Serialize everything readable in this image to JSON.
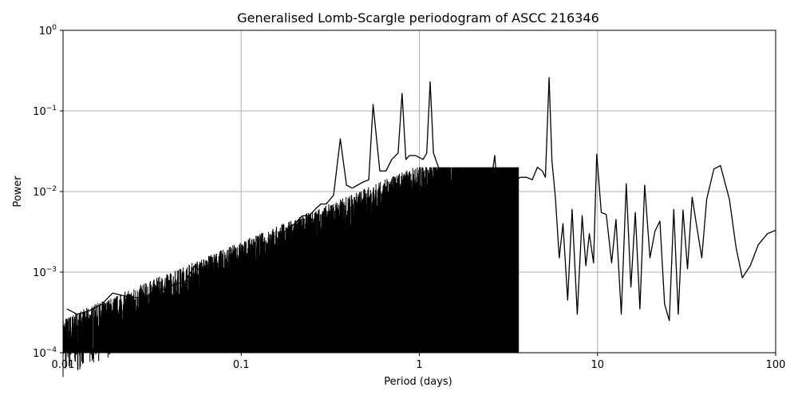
{
  "chart_data": {
    "type": "line",
    "title": "Generalised Lomb-Scargle periodogram of ASCC 216346",
    "xlabel": "Period (days)",
    "ylabel": "Power",
    "xscale": "log",
    "yscale": "log",
    "xlim": [
      0.01,
      100
    ],
    "ylim": [
      0.0001,
      1
    ],
    "grid": true,
    "line_color": "#000000",
    "grid_color": "#b0b0b0",
    "x_ticks": [
      {
        "value": 0.01,
        "label": "0.01"
      },
      {
        "value": 0.1,
        "label": "0.1"
      },
      {
        "value": 1,
        "label": "1"
      },
      {
        "value": 10,
        "label": "10"
      },
      {
        "value": 100,
        "label": "100"
      }
    ],
    "y_ticks": [
      {
        "value": 0.0001,
        "base": "10",
        "exp": "−4"
      },
      {
        "value": 0.001,
        "base": "10",
        "exp": "−3"
      },
      {
        "value": 0.01,
        "base": "10",
        "exp": "−2"
      },
      {
        "value": 0.1,
        "base": "10",
        "exp": "−1"
      },
      {
        "value": 1,
        "base": "10",
        "exp": "0"
      }
    ],
    "series": [
      {
        "x": [
          0.0105,
          0.012,
          0.014,
          0.0165,
          0.019,
          0.0225,
          0.0265,
          0.031,
          0.036,
          0.042,
          0.048,
          0.055,
          0.062,
          0.071,
          0.08,
          0.09,
          0.1,
          0.112,
          0.125,
          0.14,
          0.155,
          0.17,
          0.185,
          0.2,
          0.22,
          0.24,
          0.26,
          0.28,
          0.3,
          0.33,
          0.36,
          0.39,
          0.42,
          0.45,
          0.48,
          0.52,
          0.55,
          0.6,
          0.65,
          0.7,
          0.76,
          0.8,
          0.84,
          0.88,
          0.95,
          1.05,
          1.1,
          1.15,
          1.2,
          1.28,
          1.35,
          1.45,
          1.55,
          1.7,
          1.8,
          1.95,
          2.1,
          2.3,
          2.5,
          2.65,
          2.8,
          3.0,
          3.2,
          3.45,
          3.7,
          4.0,
          4.3,
          4.6,
          4.9,
          5.1,
          5.35,
          5.55,
          5.8,
          6.1,
          6.4,
          6.8,
          7.2,
          7.7,
          8.2,
          8.6,
          9.0,
          9.5,
          9.9,
          10.5,
          11.2,
          12.0,
          12.7,
          13.6,
          14.5,
          15.4,
          16.3,
          17.3,
          18.4,
          19.7,
          21.0,
          22.4,
          23.8,
          25.3,
          26.8,
          28.4,
          30.2,
          32.0,
          34.0,
          36.2,
          38.5,
          41.0,
          45.0,
          49.0,
          55.0,
          60.0,
          65.0,
          72.0,
          80.0,
          90.0,
          100.0
        ],
        "y": [
          0.00035,
          0.0003,
          0.00033,
          0.0004,
          0.00055,
          0.0005,
          0.00048,
          0.00052,
          0.0006,
          0.0007,
          0.00075,
          0.0012,
          0.0009,
          0.001,
          0.0011,
          0.0013,
          0.0012,
          0.0014,
          0.0016,
          0.0018,
          0.0022,
          0.003,
          0.0035,
          0.004,
          0.005,
          0.005,
          0.006,
          0.007,
          0.007,
          0.009,
          0.045,
          0.012,
          0.011,
          0.012,
          0.013,
          0.014,
          0.12,
          0.018,
          0.018,
          0.025,
          0.03,
          0.165,
          0.025,
          0.028,
          0.028,
          0.025,
          0.03,
          0.23,
          0.03,
          0.02,
          0.015,
          0.013,
          0.012,
          0.011,
          0.011,
          0.011,
          0.012,
          0.011,
          0.011,
          0.028,
          0.0055,
          0.015,
          0.013,
          0.014,
          0.015,
          0.015,
          0.014,
          0.02,
          0.018,
          0.015,
          0.26,
          0.024,
          0.0085,
          0.0015,
          0.004,
          0.00045,
          0.006,
          0.0003,
          0.005,
          0.0012,
          0.003,
          0.0013,
          0.029,
          0.0055,
          0.0052,
          0.0013,
          0.0045,
          0.0003,
          0.0125,
          0.00065,
          0.0055,
          0.00035,
          0.012,
          0.0015,
          0.0032,
          0.0043,
          0.0004,
          0.00025,
          0.006,
          0.0003,
          0.0059,
          0.0011,
          0.0085,
          0.0035,
          0.0015,
          0.008,
          0.019,
          0.021,
          0.008,
          0.002,
          0.00085,
          0.0012,
          0.0022,
          0.003,
          0.0033
        ]
      }
    ]
  }
}
